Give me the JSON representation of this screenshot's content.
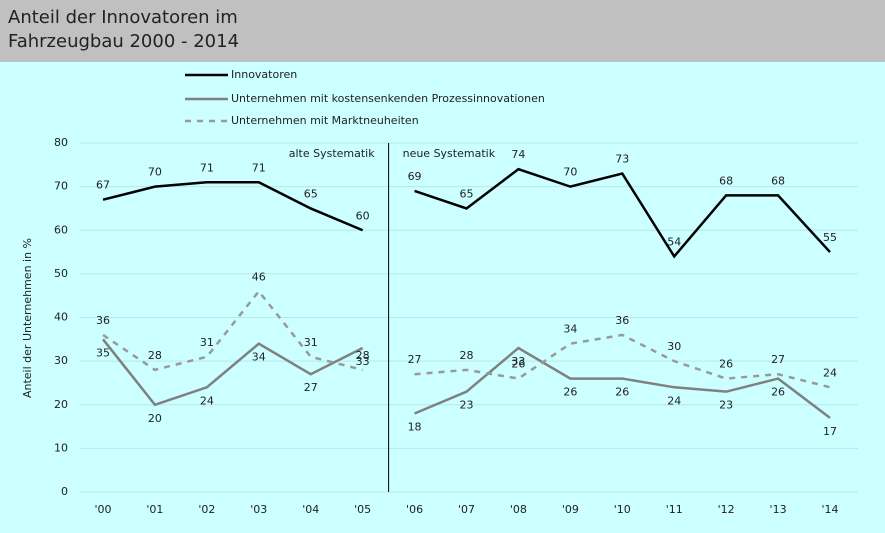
{
  "chart_data": {
    "type": "line",
    "title": "Anteil der Innovatoren im Fahrzeugbau 2000 - 2014",
    "y_label": "Anteil der Unternehmen in %",
    "categories": [
      "'00",
      "'01",
      "'02",
      "'03",
      "'04",
      "'05",
      "'06",
      "'07",
      "'08",
      "'09",
      "'10",
      "'11",
      "'12",
      "'13",
      "'14"
    ],
    "break_after": "'05",
    "annotations": [
      "alte Systematik",
      "neue Systematik"
    ],
    "series": [
      {
        "name": "Innovatoren",
        "color": "#000000",
        "dash": false,
        "values": [
          67,
          70,
          71,
          71,
          65,
          60,
          69,
          65,
          74,
          70,
          73,
          54,
          68,
          68,
          55
        ]
      },
      {
        "name": "Unternehmen mit kostensenkenden Prozessinnovationen",
        "color": "#808080",
        "dash": false,
        "values": [
          35,
          20,
          24,
          34,
          27,
          33,
          18,
          23,
          33,
          26,
          26,
          24,
          23,
          26,
          17
        ]
      },
      {
        "name": "Unternehmen mit Marktneuheiten",
        "color": "#999999",
        "dash": true,
        "values": [
          36,
          28,
          31,
          46,
          31,
          28,
          27,
          28,
          26,
          34,
          36,
          30,
          26,
          27,
          24
        ]
      }
    ],
    "ylim": [
      0,
      80
    ],
    "yticks": [
      0,
      10,
      20,
      30,
      40,
      50,
      60,
      70,
      80
    ],
    "grid": true
  }
}
